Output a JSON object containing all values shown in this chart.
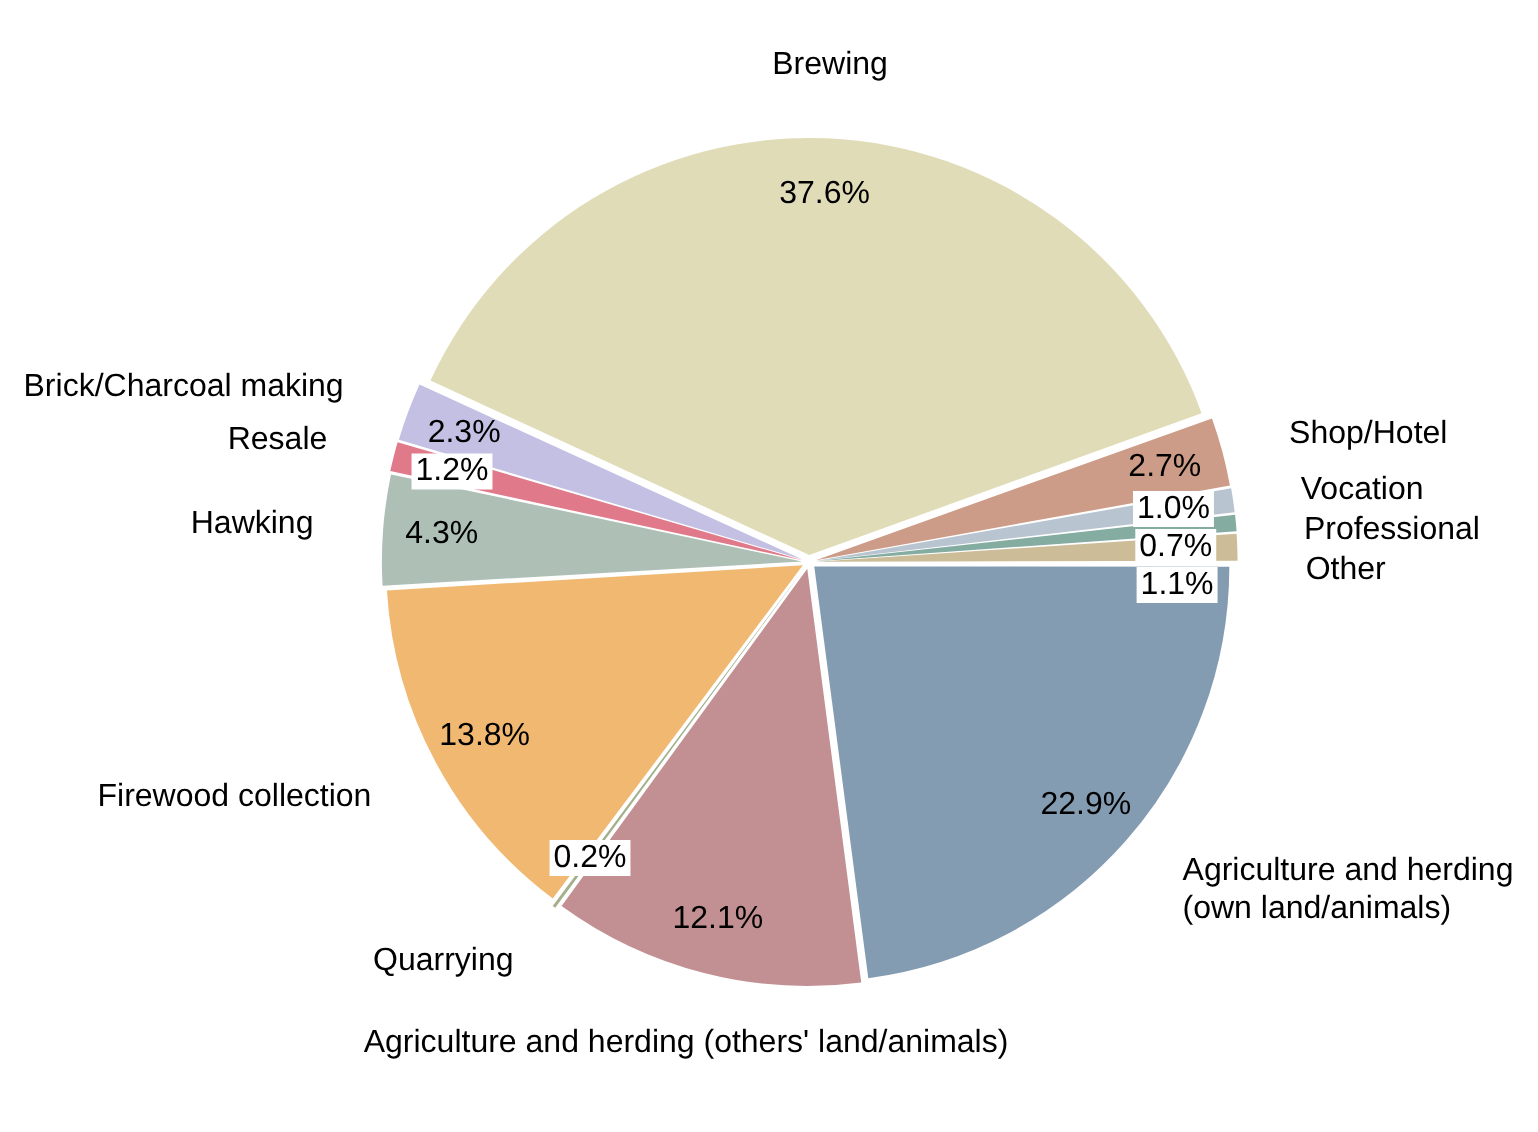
{
  "chart_data": {
    "type": "pie",
    "categories": [
      "Agriculture and herding\n(own land/animals)",
      "Agriculture and herding (others' land/animals)",
      "Quarrying",
      "Firewood collection",
      "Hawking",
      "Resale",
      "Brick/Charcoal making",
      "Brewing",
      "Shop/Hotel",
      "Vocation",
      "Professional",
      "Other"
    ],
    "values": [
      22.9,
      12.1,
      0.2,
      13.8,
      4.3,
      1.2,
      2.3,
      37.6,
      2.7,
      1.0,
      0.7,
      1.1
    ],
    "value_labels": [
      "22.9%",
      "12.1%",
      "0.2%",
      "13.8%",
      "4.3%",
      "1.2%",
      "2.3%",
      "37.6%",
      "2.7%",
      "1.0%",
      "0.7%",
      "1.1%"
    ],
    "colors": [
      "#849cb2",
      "#c29092",
      "#a4b08c",
      "#f0b870",
      "#aebfb6",
      "#e07a8a",
      "#c4c0e4",
      "#e0dcb8",
      "#cc9c88",
      "#b8c4d0",
      "#84aca0",
      "#ccbc98"
    ]
  }
}
